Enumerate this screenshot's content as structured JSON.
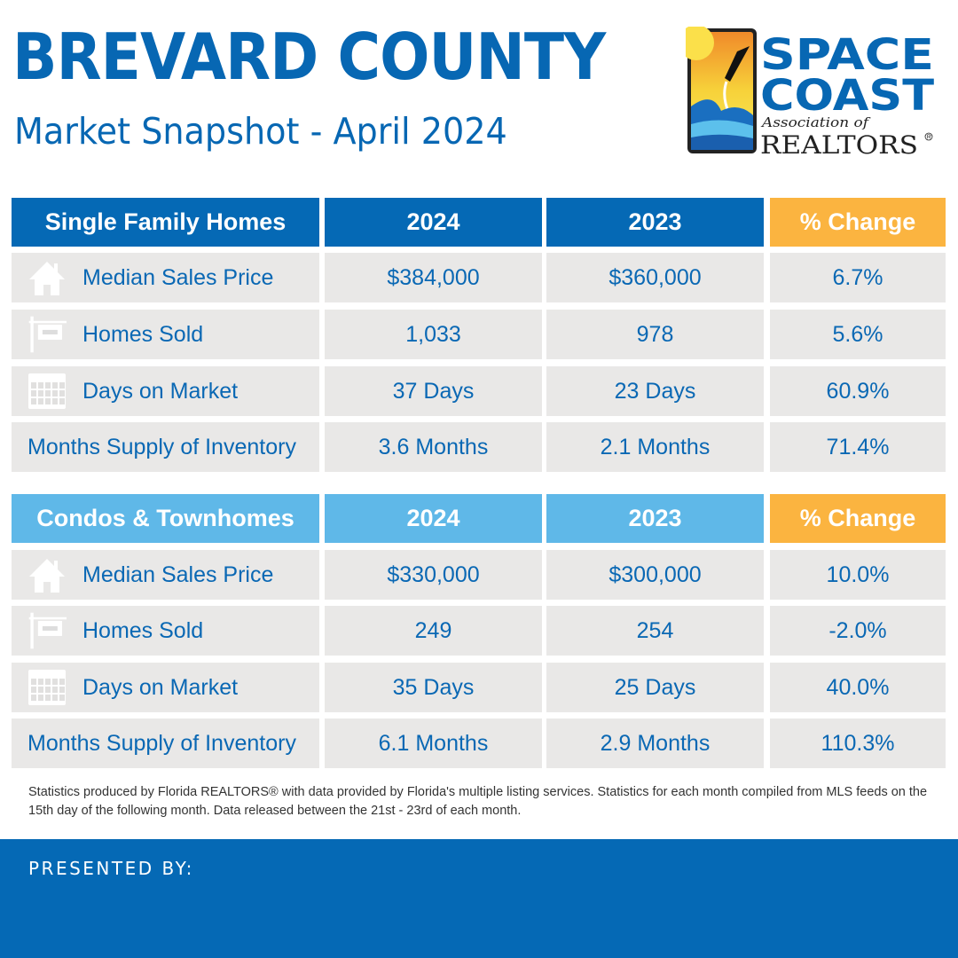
{
  "header": {
    "title": "BREVARD COUNTY",
    "subtitle": "Market Snapshot - April 2024"
  },
  "logo": {
    "text_line1": "SPACE",
    "text_line2": "COAST",
    "text_line3": "Association of",
    "text_line4": "REALTORS®"
  },
  "colors": {
    "primary_blue": "#0569b5",
    "light_blue": "#5fb8e8",
    "orange": "#fbb440",
    "row_gray": "#e9e8e7"
  },
  "tables": [
    {
      "header": [
        "Single Family Homes",
        "2024",
        "2023",
        "% Change"
      ],
      "header_color": "#0569b5",
      "rows": [
        {
          "icon": "house-icon",
          "label": "Median Sales Price",
          "v2024": "$384,000",
          "v2023": "$360,000",
          "change": "6.7%"
        },
        {
          "icon": "sold-sign-icon",
          "label": "Homes Sold",
          "v2024": "1,033",
          "v2023": "978",
          "change": "5.6%"
        },
        {
          "icon": "calendar-icon",
          "label": "Days on Market",
          "v2024": "37 Days",
          "v2023": "23 Days",
          "change": "60.9%"
        },
        {
          "icon": "",
          "label": "Months Supply of Inventory",
          "v2024": "3.6 Months",
          "v2023": "2.1 Months",
          "change": "71.4%"
        }
      ]
    },
    {
      "header": [
        "Condos & Townhomes",
        "2024",
        "2023",
        "% Change"
      ],
      "header_color": "#5fb8e8",
      "rows": [
        {
          "icon": "house-icon",
          "label": "Median Sales Price",
          "v2024": "$330,000",
          "v2023": "$300,000",
          "change": "10.0%"
        },
        {
          "icon": "sold-sign-icon",
          "label": "Homes Sold",
          "v2024": "249",
          "v2023": "254",
          "change": "-2.0%"
        },
        {
          "icon": "calendar-icon",
          "label": "Days on Market",
          "v2024": "35 Days",
          "v2023": "25 Days",
          "change": "40.0%"
        },
        {
          "icon": "",
          "label": "Months Supply of Inventory",
          "v2024": "6.1 Months",
          "v2023": "2.9 Months",
          "change": "110.3%"
        }
      ]
    }
  ],
  "footer": {
    "note": "Statistics produced by Florida REALTORS® with data provided by Florida's multiple listing services. Statistics for each month compiled from MLS feeds on the 15th day of the following month. Data released between the 21st - 23rd of each month.",
    "presented_by": "PRESENTED BY:"
  }
}
